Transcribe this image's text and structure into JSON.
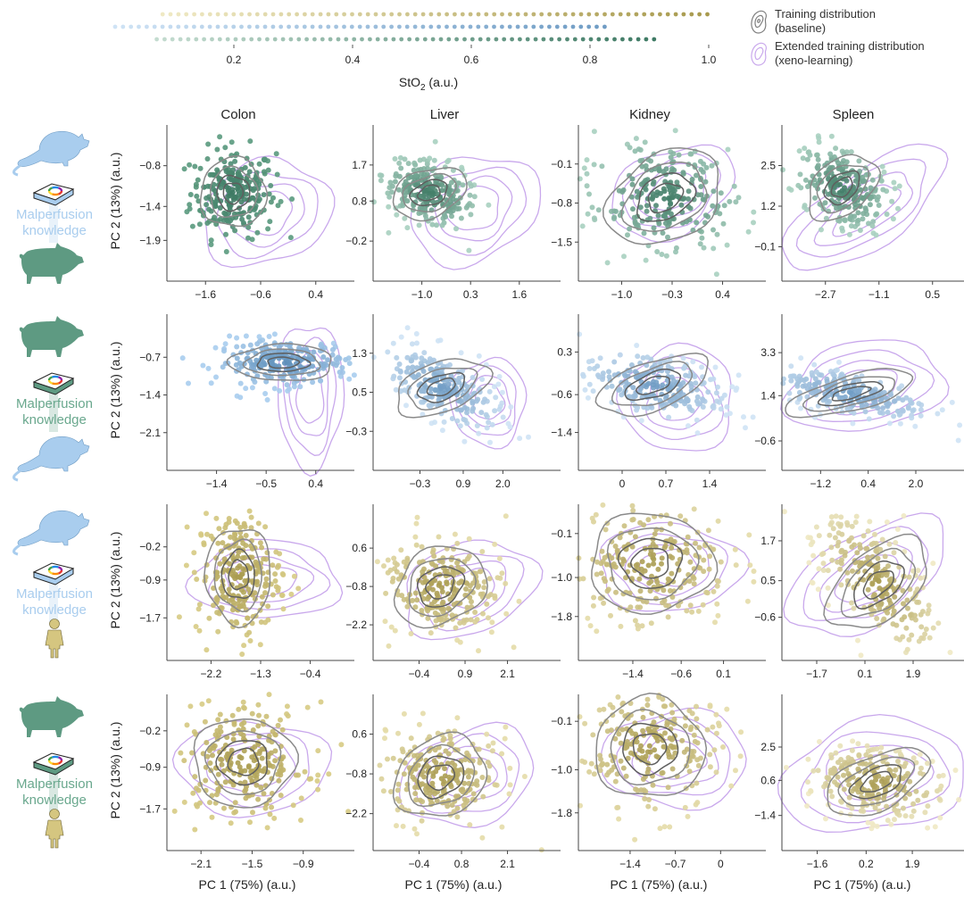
{
  "chart_data": {
    "type": "scatter",
    "title": "",
    "colorbar": {
      "label": "StO2 (a.u.)",
      "label_main": "StO",
      "label_sub": "2",
      "label_suffix": " (a.u.)",
      "ticks": [
        0.2,
        0.4,
        0.6,
        0.8,
        1.0
      ],
      "tick_labels": [
        "0.2",
        "0.4",
        "0.6",
        "0.8",
        "1.0"
      ],
      "range": [
        0.0,
        1.0
      ],
      "scales": [
        {
          "name": "human",
          "from": 0.08,
          "to": 1.0,
          "color_low": "#efe9c4",
          "color_high": "#a89a4e"
        },
        {
          "name": "rat",
          "from": 0.0,
          "to": 0.83,
          "color_low": "#cfe3f5",
          "color_high": "#6f9cc4"
        },
        {
          "name": "pig",
          "from": 0.07,
          "to": 0.91,
          "color_low": "#c4dcd0",
          "color_high": "#3e7a64"
        }
      ]
    },
    "legend": [
      {
        "label_line1": "Training distribution",
        "label_line2": "(baseline)",
        "color": "#7f7f7f",
        "icon": "gray-contour-icon"
      },
      {
        "label_line1": "Extended training distribution",
        "label_line2": "(xeno-learning)",
        "color": "#c9a8ec",
        "icon": "purple-contour-icon"
      }
    ],
    "columns": [
      "Colon",
      "Liver",
      "Kidney",
      "Spleen"
    ],
    "xlabel": "PC 1 (75%) (a.u.)",
    "ylabel": "PC 2 (13%) (a.u.)",
    "rows": [
      {
        "source": "rat",
        "target": "pig",
        "label_line1": "Malperfusion",
        "label_line2": "knowledge",
        "label_color": "#a9cdee",
        "book_color": "#a9cdee",
        "panels": [
          {
            "organ": "Colon",
            "xticks": [
              -1.6,
              -0.6,
              0.4
            ],
            "xtick_labels": [
              "-1.6",
              "-0.6",
              "0.4"
            ],
            "yticks": [
              -0.8,
              -1.4,
              -1.9
            ],
            "ytick_labels": [
              "-0.8",
              "-1.4",
              "-1.9"
            ],
            "xlim": [
              -2.3,
              1.1
            ],
            "ylim": [
              -2.5,
              -0.2
            ],
            "cloud": {
              "cx": -1.1,
              "cy": -1.2,
              "sx": 0.35,
              "sy": 0.3,
              "rot": 0
            },
            "ext": {
              "cx": -0.5,
              "cy": -1.5,
              "sx": 0.8,
              "sy": 0.5,
              "rot": -20
            },
            "color_low": "#5a9a7e",
            "color_high": "#3e7a64"
          },
          {
            "organ": "Liver",
            "xticks": [
              -1.0,
              0.3,
              1.6
            ],
            "xtick_labels": [
              "-1.0",
              "0.3",
              "1.6"
            ],
            "yticks": [
              1.7,
              0.8,
              -0.2
            ],
            "ytick_labels": [
              "1.7",
              "0.8",
              "-0.2"
            ],
            "xlim": [
              -2.3,
              2.7
            ],
            "ylim": [
              -1.2,
              2.7
            ],
            "cloud": {
              "cx": -0.8,
              "cy": 1.0,
              "sx": 0.6,
              "sy": 0.35,
              "rot": -20
            },
            "ext": {
              "cx": 0.4,
              "cy": 0.6,
              "sx": 1.2,
              "sy": 0.85,
              "rot": -25
            },
            "color_low": "#a8d0c0",
            "color_high": "#3e7a64"
          },
          {
            "organ": "Kidney",
            "xticks": [
              -1.0,
              -0.3,
              0.4
            ],
            "xtick_labels": [
              "-1.0",
              "-0.3",
              "0.4"
            ],
            "yticks": [
              -0.1,
              -0.8,
              -1.5
            ],
            "ytick_labels": [
              "-0.1",
              "-0.8",
              "-1.5"
            ],
            "xlim": [
              -1.6,
              1.0
            ],
            "ylim": [
              -2.2,
              0.6
            ],
            "cloud": {
              "cx": -0.4,
              "cy": -0.7,
              "sx": 0.5,
              "sy": 0.45,
              "rot": -30
            },
            "ext": {
              "cx": -0.3,
              "cy": -0.6,
              "sx": 0.6,
              "sy": 0.5,
              "rot": -25
            },
            "color_low": "#a8d0c0",
            "color_high": "#3e7a64"
          },
          {
            "organ": "Spleen",
            "xticks": [
              -2.7,
              -1.1,
              0.5
            ],
            "xtick_labels": [
              "-2.7",
              "-1.1",
              "0.5"
            ],
            "yticks": [
              2.5,
              1.2,
              -0.1
            ],
            "ytick_labels": [
              "2.5",
              "1.2",
              "-0.1"
            ],
            "xlim": [
              -4.0,
              1.6
            ],
            "ylim": [
              -1.2,
              3.8
            ],
            "cloud": {
              "cx": -2.2,
              "cy": 1.8,
              "sx": 0.7,
              "sy": 0.5,
              "rot": -40
            },
            "ext": {
              "cx": -1.5,
              "cy": 1.1,
              "sx": 1.9,
              "sy": 0.8,
              "rot": -35
            },
            "color_low": "#a8d0c0",
            "color_high": "#3e7a64"
          }
        ]
      },
      {
        "source": "pig",
        "target": "rat",
        "label_line1": "Malperfusion",
        "label_line2": "knowledge",
        "label_color": "#6aa88e",
        "book_color": "#5e9a82",
        "panels": [
          {
            "organ": "Colon",
            "xticks": [
              -1.4,
              -0.5,
              0.4
            ],
            "xtick_labels": [
              "-1.4",
              "-0.5",
              "0.4"
            ],
            "yticks": [
              -0.7,
              -1.4,
              -2.1
            ],
            "ytick_labels": [
              "-0.7",
              "-1.4",
              "-2.1"
            ],
            "xlim": [
              -2.3,
              1.1
            ],
            "ylim": [
              -2.8,
              0.1
            ],
            "cloud": {
              "cx": -0.2,
              "cy": -0.8,
              "sx": 0.55,
              "sy": 0.2,
              "rot": 0
            },
            "ext": {
              "cx": 0.3,
              "cy": -1.4,
              "sx": 0.4,
              "sy": 0.9,
              "rot": 0
            },
            "color_low": "#a9cdee",
            "color_high": "#5b8db8"
          },
          {
            "organ": "Liver",
            "xticks": [
              -0.3,
              0.9,
              2.0
            ],
            "xtick_labels": [
              "-0.3",
              "0.9",
              "2.0"
            ],
            "yticks": [
              1.3,
              0.5,
              -0.3
            ],
            "ytick_labels": [
              "1.3",
              "0.5",
              "-0.3"
            ],
            "xlim": [
              -1.6,
              3.6
            ],
            "ylim": [
              -1.1,
              2.1
            ],
            "cloud": {
              "cx": 0.3,
              "cy": 0.6,
              "sx": 0.8,
              "sy": 0.3,
              "rot": -20
            },
            "ext": {
              "cx": 1.6,
              "cy": 0.3,
              "sx": 0.7,
              "sy": 0.6,
              "rot": 0
            },
            "color_low": "#cfe3f5",
            "color_high": "#6f9cc4"
          },
          {
            "organ": "Kidney",
            "xticks": [
              0,
              0.7,
              1.4
            ],
            "xtick_labels": [
              "0",
              "0.7",
              "1.4"
            ],
            "yticks": [
              0.3,
              -0.6,
              -1.4
            ],
            "ytick_labels": [
              "0.3",
              "-0.6",
              "-1.4"
            ],
            "xlim": [
              -0.7,
              2.3
            ],
            "ylim": [
              -2.2,
              1.1
            ],
            "cloud": {
              "cx": 0.5,
              "cy": -0.4,
              "sx": 0.55,
              "sy": 0.3,
              "rot": -20
            },
            "ext": {
              "cx": 0.9,
              "cy": -0.7,
              "sx": 0.6,
              "sy": 0.75,
              "rot": 0
            },
            "color_low": "#cfe3f5",
            "color_high": "#6f9cc4"
          },
          {
            "organ": "Spleen",
            "xticks": [
              -1.2,
              0.4,
              2.0
            ],
            "xtick_labels": [
              "-1.2",
              "0.4",
              "2.0"
            ],
            "yticks": [
              3.3,
              1.4,
              -0.6
            ],
            "ytick_labels": [
              "3.3",
              "1.4",
              "-0.6"
            ],
            "xlim": [
              -2.5,
              3.8
            ],
            "ylim": [
              -1.9,
              5.0
            ],
            "cloud": {
              "cx": -0.2,
              "cy": 1.5,
              "sx": 1.3,
              "sy": 0.45,
              "rot": -15
            },
            "ext": {
              "cx": 0.3,
              "cy": 1.8,
              "sx": 1.8,
              "sy": 1.3,
              "rot": -10
            },
            "color_low": "#cfe3f5",
            "color_high": "#6f9cc4"
          }
        ]
      },
      {
        "source": "rat",
        "target": "human",
        "label_line1": "Malperfusion",
        "label_line2": "knowledge",
        "label_color": "#a9cdee",
        "book_color": "#a9cdee",
        "panels": [
          {
            "organ": "Colon",
            "xticks": [
              -2.2,
              -1.3,
              -0.4
            ],
            "xtick_labels": [
              "-2.2",
              "-1.3",
              "-0.4"
            ],
            "yticks": [
              -0.2,
              -0.9,
              -1.7
            ],
            "ytick_labels": [
              "-0.2",
              "-0.9",
              "-1.7"
            ],
            "xlim": [
              -3.0,
              0.4
            ],
            "ylim": [
              -2.6,
              0.7
            ],
            "cloud": {
              "cx": -1.7,
              "cy": -0.8,
              "sx": 0.35,
              "sy": 0.6,
              "rot": 0
            },
            "ext": {
              "cx": -1.2,
              "cy": -0.9,
              "sx": 0.9,
              "sy": 0.55,
              "rot": 0
            },
            "color_low": "#d7cb84",
            "color_high": "#a89a4e"
          },
          {
            "organ": "Liver",
            "xticks": [
              -0.4,
              0.9,
              2.1
            ],
            "xtick_labels": [
              "-0.4",
              "0.9",
              "2.1"
            ],
            "yticks": [
              0.6,
              -0.8,
              -2.2
            ],
            "ytick_labels": [
              "0.6",
              "-0.8",
              "-2.2"
            ],
            "xlim": [
              -1.7,
              3.6
            ],
            "ylim": [
              -3.5,
              2.2
            ],
            "cloud": {
              "cx": 0.2,
              "cy": -0.8,
              "sx": 0.8,
              "sy": 0.8,
              "rot": -30
            },
            "ext": {
              "cx": 1.0,
              "cy": -0.9,
              "sx": 1.3,
              "sy": 1.1,
              "rot": -20
            },
            "color_low": "#e4dba8",
            "color_high": "#a89a4e"
          },
          {
            "organ": "Kidney",
            "xticks": [
              -1.4,
              -0.6,
              0.1
            ],
            "xtick_labels": [
              "-1.4",
              "-0.6",
              "0.1"
            ],
            "yticks": [
              -0.1,
              -1.0,
              -1.8
            ],
            "ytick_labels": [
              "-0.1",
              "-1.0",
              "-1.8"
            ],
            "xlim": [
              -2.3,
              0.8
            ],
            "ylim": [
              -2.7,
              0.5
            ],
            "cloud": {
              "cx": -1.1,
              "cy": -0.7,
              "sx": 0.6,
              "sy": 0.6,
              "rot": 0
            },
            "ext": {
              "cx": -0.8,
              "cy": -0.8,
              "sx": 0.8,
              "sy": 0.6,
              "rot": 0
            },
            "color_low": "#e4dba8",
            "color_high": "#a89a4e"
          },
          {
            "organ": "Spleen",
            "xticks": [
              -1.7,
              0.1,
              1.9
            ],
            "xtick_labels": [
              "-1.7",
              "0.1",
              "1.9"
            ],
            "yticks": [
              1.7,
              0.5,
              -0.6
            ],
            "ytick_labels": [
              "1.7",
              "0.5",
              "-0.6"
            ],
            "xlim": [
              -3.0,
              4.0
            ],
            "ylim": [
              -1.9,
              2.8
            ],
            "cloud": {
              "cx": 0.6,
              "cy": 0.4,
              "sx": 1.3,
              "sy": 0.6,
              "rot": -40
            },
            "ext": {
              "cx": 0.2,
              "cy": 0.6,
              "sx": 2.2,
              "sy": 0.9,
              "rot": -30
            },
            "color_low": "#efe9c4",
            "color_high": "#a89a4e"
          }
        ]
      },
      {
        "source": "pig",
        "target": "human",
        "label_line1": "Malperfusion",
        "label_line2": "knowledge",
        "label_color": "#6aa88e",
        "book_color": "#5e9a82",
        "panels": [
          {
            "organ": "Colon",
            "xticks": [
              -2.1,
              -1.5,
              -0.9
            ],
            "xtick_labels": [
              "-2.1",
              "-1.5",
              "-0.9"
            ],
            "yticks": [
              -0.2,
              -0.9,
              -1.7
            ],
            "ytick_labels": [
              "-0.2",
              "-0.9",
              "-1.7"
            ],
            "xlim": [
              -2.5,
              -0.3
            ],
            "ylim": [
              -2.5,
              0.5
            ],
            "cloud": {
              "cx": -1.6,
              "cy": -0.8,
              "sx": 0.35,
              "sy": 0.5,
              "rot": 0
            },
            "ext": {
              "cx": -1.5,
              "cy": -0.9,
              "sx": 0.6,
              "sy": 0.6,
              "rot": 0
            },
            "color_low": "#d7cb84",
            "color_high": "#a89a4e"
          },
          {
            "organ": "Liver",
            "xticks": [
              -0.4,
              0.8,
              2.1
            ],
            "xtick_labels": [
              "-0.4",
              "0.8",
              "2.1"
            ],
            "yticks": [
              0.6,
              -0.8,
              -2.2
            ],
            "ytick_labels": [
              "0.6",
              "-0.8",
              "-2.2"
            ],
            "xlim": [
              -1.7,
              3.6
            ],
            "ylim": [
              -3.5,
              2.0
            ],
            "cloud": {
              "cx": 0.2,
              "cy": -0.9,
              "sx": 0.8,
              "sy": 0.8,
              "rot": -30
            },
            "ext": {
              "cx": 1.0,
              "cy": -0.9,
              "sx": 1.3,
              "sy": 1.1,
              "rot": -20
            },
            "color_low": "#e4dba8",
            "color_high": "#a89a4e"
          },
          {
            "organ": "Kidney",
            "xticks": [
              -1.4,
              -0.7,
              0
            ],
            "xtick_labels": [
              "-1.4",
              "-0.7",
              "0"
            ],
            "yticks": [
              -0.1,
              -1.0,
              -1.8
            ],
            "ytick_labels": [
              "-0.1",
              "-1.0",
              "-1.8"
            ],
            "xlim": [
              -2.2,
              0.7
            ],
            "ylim": [
              -2.5,
              0.4
            ],
            "cloud": {
              "cx": -1.1,
              "cy": -0.6,
              "sx": 0.5,
              "sy": 0.55,
              "rot": 0
            },
            "ext": {
              "cx": -0.7,
              "cy": -0.8,
              "sx": 0.75,
              "sy": 0.6,
              "rot": 0
            },
            "color_low": "#e4dba8",
            "color_high": "#a89a4e"
          },
          {
            "organ": "Spleen",
            "xticks": [
              -1.6,
              0.2,
              1.9
            ],
            "xtick_labels": [
              "-1.6",
              "0.2",
              "1.9"
            ],
            "yticks": [
              2.5,
              0.6,
              -1.4
            ],
            "ytick_labels": [
              "2.5",
              "0.6",
              "-1.4"
            ],
            "xlim": [
              -2.9,
              4.0
            ],
            "ylim": [
              -3.4,
              5.5
            ],
            "cloud": {
              "cx": 0.6,
              "cy": 0.5,
              "sx": 1.2,
              "sy": 0.9,
              "rot": -25
            },
            "ext": {
              "cx": 0.5,
              "cy": 0.8,
              "sx": 2.3,
              "sy": 2.1,
              "rot": -10
            },
            "color_low": "#efe9c4",
            "color_high": "#a89a4e"
          }
        ]
      }
    ]
  }
}
